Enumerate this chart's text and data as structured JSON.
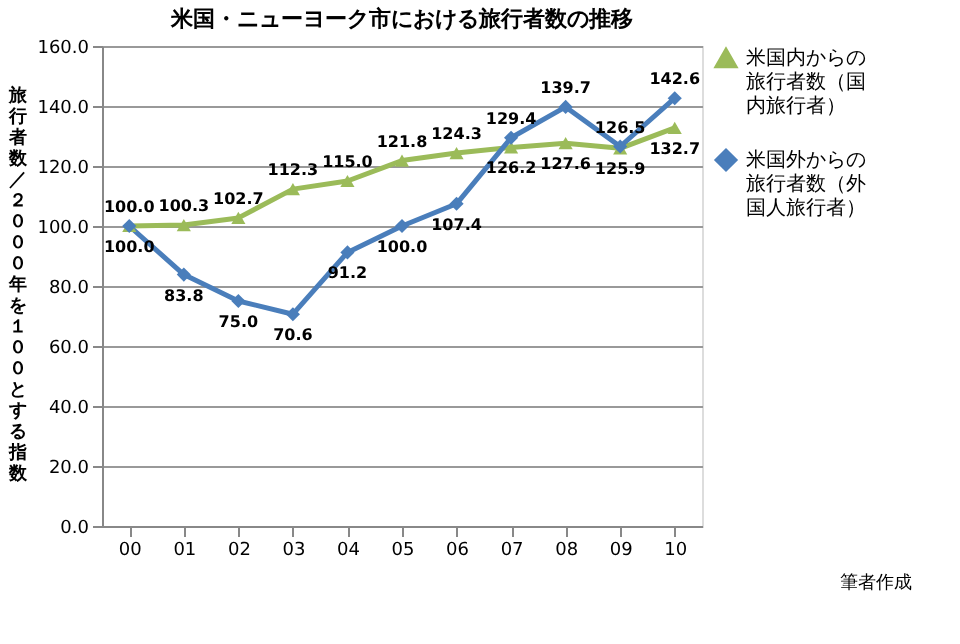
{
  "chart_data": {
    "type": "line",
    "title": "米国・ニューヨーク市における旅行者数の推移",
    "ylabel": "旅行者数／２０００年を１００とする指数",
    "categories": [
      "00",
      "01",
      "02",
      "03",
      "04",
      "05",
      "06",
      "07",
      "08",
      "09",
      "10"
    ],
    "series": [
      {
        "name": "米国内からの旅行者数（国内旅行者）",
        "color": "#9bbb59",
        "marker": "triangle",
        "values": [
          100.0,
          100.3,
          102.7,
          112.3,
          115.0,
          121.8,
          124.3,
          126.2,
          127.6,
          125.9,
          132.7
        ],
        "value_labels": [
          "100.0",
          "100.3",
          "102.7",
          "112.3",
          "115.0",
          "121.8",
          "124.3",
          "126.2",
          "127.6",
          "125.9",
          "132.7"
        ]
      },
      {
        "name": "米国外からの旅行者数（外国人旅行者）",
        "color": "#4a7ebb",
        "marker": "diamond",
        "values": [
          100.0,
          83.8,
          75.0,
          70.6,
          91.2,
          100.0,
          107.4,
          129.4,
          139.7,
          126.5,
          142.6
        ],
        "value_labels": [
          "100.0",
          "83.8",
          "75.0",
          "70.6",
          "91.2",
          "100.0",
          "107.4",
          "129.4",
          "139.7",
          "126.5",
          "142.6"
        ]
      }
    ],
    "ylim": [
      0,
      160
    ],
    "yticks": [
      {
        "value": 0,
        "label": "0.0"
      },
      {
        "value": 20,
        "label": "20.0"
      },
      {
        "value": 40,
        "label": "40.0"
      },
      {
        "value": 60,
        "label": "60.0"
      },
      {
        "value": 80,
        "label": "80.0"
      },
      {
        "value": 100,
        "label": "100.0"
      },
      {
        "value": 120,
        "label": "120.0"
      },
      {
        "value": 140,
        "label": "140.0"
      },
      {
        "value": 160,
        "label": "160.0"
      }
    ],
    "grid": "y",
    "legend": "right",
    "line_style": "solid",
    "annotations": [
      "筆者作成"
    ]
  }
}
